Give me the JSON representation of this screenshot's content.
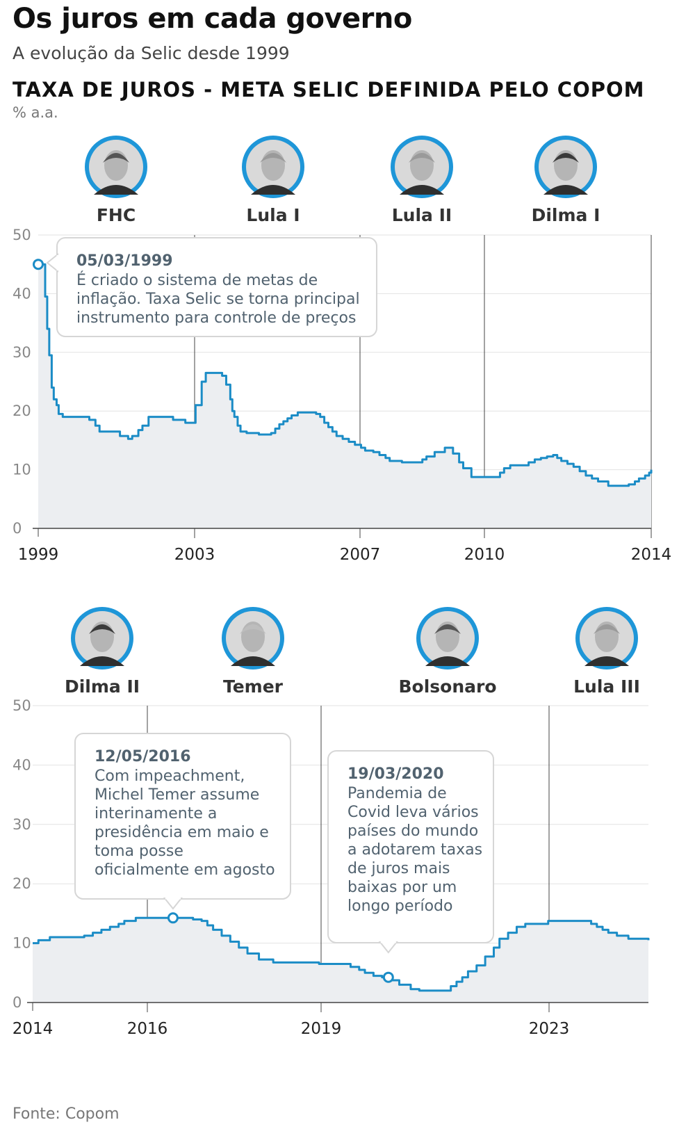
{
  "title": "Os juros em cada governo",
  "subtitle": "A evolução da Selic desde 1999",
  "chart_heading": "TAXA DE JUROS - META SELIC DEFINIDA PELO COPOM",
  "unit": "% a.a.",
  "source": "Fonte: Copom",
  "colors": {
    "line": "#1b8cc6",
    "area": "#eceef1",
    "avatar_ring": "#1e96d8",
    "divider": "#444444",
    "note_text": "#51626f"
  },
  "chart_data": [
    {
      "type": "line",
      "ylim": [
        0,
        50
      ],
      "yticks": [
        "0",
        "10",
        "20",
        "30",
        "40",
        "50"
      ],
      "xlim": [
        1999.0,
        2014.0
      ],
      "xtick_labels": [
        "1999",
        "2003",
        "2007",
        "2010",
        "2014"
      ],
      "governments": [
        {
          "name": "FHC",
          "start": 1999.0,
          "icon": "fhc-portrait-icon"
        },
        {
          "name": "Lula I",
          "start": 2003.0,
          "icon": "lula-portrait-icon"
        },
        {
          "name": "Lula II",
          "start": 2007.0,
          "icon": "lula-portrait-icon"
        },
        {
          "name": "Dilma I",
          "start": 2011.0,
          "icon": "dilma-portrait-icon"
        }
      ],
      "series": [
        {
          "x": [
            1999.0,
            1999.17,
            1999.22,
            1999.27,
            1999.33,
            1999.38,
            1999.45,
            1999.5,
            1999.6,
            1999.75,
            2000.0,
            2000.25,
            2000.4,
            2000.5,
            2000.7,
            2001.0,
            2001.2,
            2001.3,
            2001.45,
            2001.55,
            2001.7,
            2002.0,
            2002.3,
            2002.6,
            2002.8,
            2002.85,
            2003.0,
            2003.1,
            2003.2,
            2003.5,
            2003.6,
            2003.7,
            2003.75,
            2003.8,
            2003.88,
            2003.95,
            2004.1,
            2004.4,
            2004.6,
            2004.7,
            2004.8,
            2004.9,
            2005.0,
            2005.1,
            2005.2,
            2005.35,
            2005.7,
            2005.8,
            2005.9,
            2006.0,
            2006.1,
            2006.2,
            2006.3,
            2006.45,
            2006.6,
            2006.75,
            2006.9,
            2007.0,
            2007.2,
            2007.35,
            2007.5,
            2007.6,
            2007.9,
            2008.3,
            2008.4,
            2008.5,
            2008.7,
            2008.95,
            2009.05,
            2009.15,
            2009.3,
            2009.4,
            2009.6,
            2010.0,
            2010.3,
            2010.4,
            2010.55,
            2010.9,
            2011.0,
            2011.15,
            2011.3,
            2011.45,
            2011.6,
            2011.7,
            2011.8,
            2011.95,
            2012.1,
            2012.25,
            2012.4,
            2012.55,
            2012.7,
            2012.95,
            2013.3,
            2013.45,
            2013.6,
            2013.7,
            2013.85,
            2013.95,
            2014.0
          ],
          "y": [
            45,
            39.5,
            34,
            29.5,
            24,
            22,
            21,
            19.5,
            19,
            19,
            19,
            18.5,
            17.5,
            16.5,
            16.5,
            15.75,
            15.25,
            15.75,
            16.75,
            17.5,
            19,
            19,
            18.5,
            18,
            18,
            21,
            25,
            26.5,
            26.5,
            26,
            24.5,
            22,
            20,
            19,
            17.5,
            16.5,
            16.25,
            16,
            16,
            16.25,
            17,
            17.75,
            18.25,
            18.75,
            19.25,
            19.75,
            19.75,
            19.5,
            19,
            18,
            17.25,
            16.5,
            15.75,
            15.25,
            14.75,
            14.25,
            13.75,
            13.25,
            13,
            12.5,
            12,
            11.5,
            11.25,
            11.25,
            11.75,
            12.25,
            13,
            13.75,
            13.75,
            12.75,
            11.25,
            10.25,
            8.75,
            8.75,
            9.5,
            10.25,
            10.75,
            10.75,
            11.25,
            11.75,
            12,
            12.25,
            12.5,
            12,
            11.5,
            11,
            10.5,
            9.75,
            9,
            8.5,
            8,
            7.25,
            7.25,
            7.5,
            8,
            8.5,
            9,
            9.5,
            10
          ]
        }
      ],
      "annotations": [
        {
          "x": 1999.0,
          "y": 45,
          "date": "05/03/1999",
          "lines": [
            "É criado o sistema de metas de",
            "inflação. Taxa Selic se torna principal",
            "instrumento para controle de preços"
          ]
        }
      ]
    },
    {
      "type": "line",
      "ylim": [
        0,
        50
      ],
      "yticks": [
        "0",
        "10",
        "20",
        "30",
        "40",
        "50"
      ],
      "xlim": [
        2014.0,
        2024.75
      ],
      "xtick_labels": [
        "2014",
        "2016",
        "2019",
        "2023"
      ],
      "governments": [
        {
          "name": "Dilma II",
          "start": 2015.0,
          "icon": "dilma-portrait-icon"
        },
        {
          "name": "Temer",
          "start": 2016.37,
          "icon": "temer-portrait-icon"
        },
        {
          "name": "Bolsonaro",
          "start": 2019.0,
          "icon": "bolsonaro-portrait-icon"
        },
        {
          "name": "Lula III",
          "start": 2023.0,
          "icon": "lula-portrait-icon"
        }
      ],
      "series": [
        {
          "x": [
            2014.0,
            2014.1,
            2014.3,
            2014.9,
            2015.05,
            2015.2,
            2015.35,
            2015.5,
            2015.6,
            2015.8,
            2016.0,
            2016.5,
            2016.8,
            2016.95,
            2017.05,
            2017.15,
            2017.3,
            2017.45,
            2017.6,
            2017.75,
            2017.95,
            2018.2,
            2019.0,
            2019.55,
            2019.7,
            2019.8,
            2019.95,
            2020.1,
            2020.2,
            2020.4,
            2020.6,
            2020.75,
            2021.2,
            2021.3,
            2021.4,
            2021.5,
            2021.6,
            2021.75,
            2021.9,
            2022.05,
            2022.15,
            2022.3,
            2022.45,
            2022.6,
            2023.0,
            2023.6,
            2023.75,
            2023.85,
            2023.95,
            2024.05,
            2024.2,
            2024.4,
            2024.75
          ],
          "y": [
            10,
            10.5,
            11,
            11.25,
            11.75,
            12.25,
            12.75,
            13.25,
            13.75,
            14.25,
            14.25,
            14.25,
            14,
            13.75,
            13,
            12.25,
            11.25,
            10.25,
            9.25,
            8.25,
            7.25,
            6.75,
            6.5,
            6,
            5.5,
            5,
            4.5,
            4.25,
            3.75,
            3,
            2.25,
            2,
            2,
            2.75,
            3.5,
            4.25,
            5.25,
            6.25,
            7.75,
            9.25,
            10.75,
            11.75,
            12.75,
            13.25,
            13.75,
            13.75,
            13.25,
            12.75,
            12.25,
            11.75,
            11.25,
            10.75,
            10.5
          ]
        }
      ],
      "annotations": [
        {
          "x": 2016.45,
          "y": 14.25,
          "date": "12/05/2016",
          "lines": [
            "Com impeachment,",
            "Michel Temer assume",
            "interinamente a",
            "presidência em maio e",
            "toma posse",
            "oficialmente em agosto"
          ]
        },
        {
          "x": 2020.21,
          "y": 4.25,
          "date": "19/03/2020",
          "lines": [
            "Pandemia de",
            "Covid leva vários",
            "países do mundo",
            "a adotarem taxas",
            "de juros mais",
            "baixas por um",
            "longo período"
          ]
        }
      ]
    }
  ]
}
